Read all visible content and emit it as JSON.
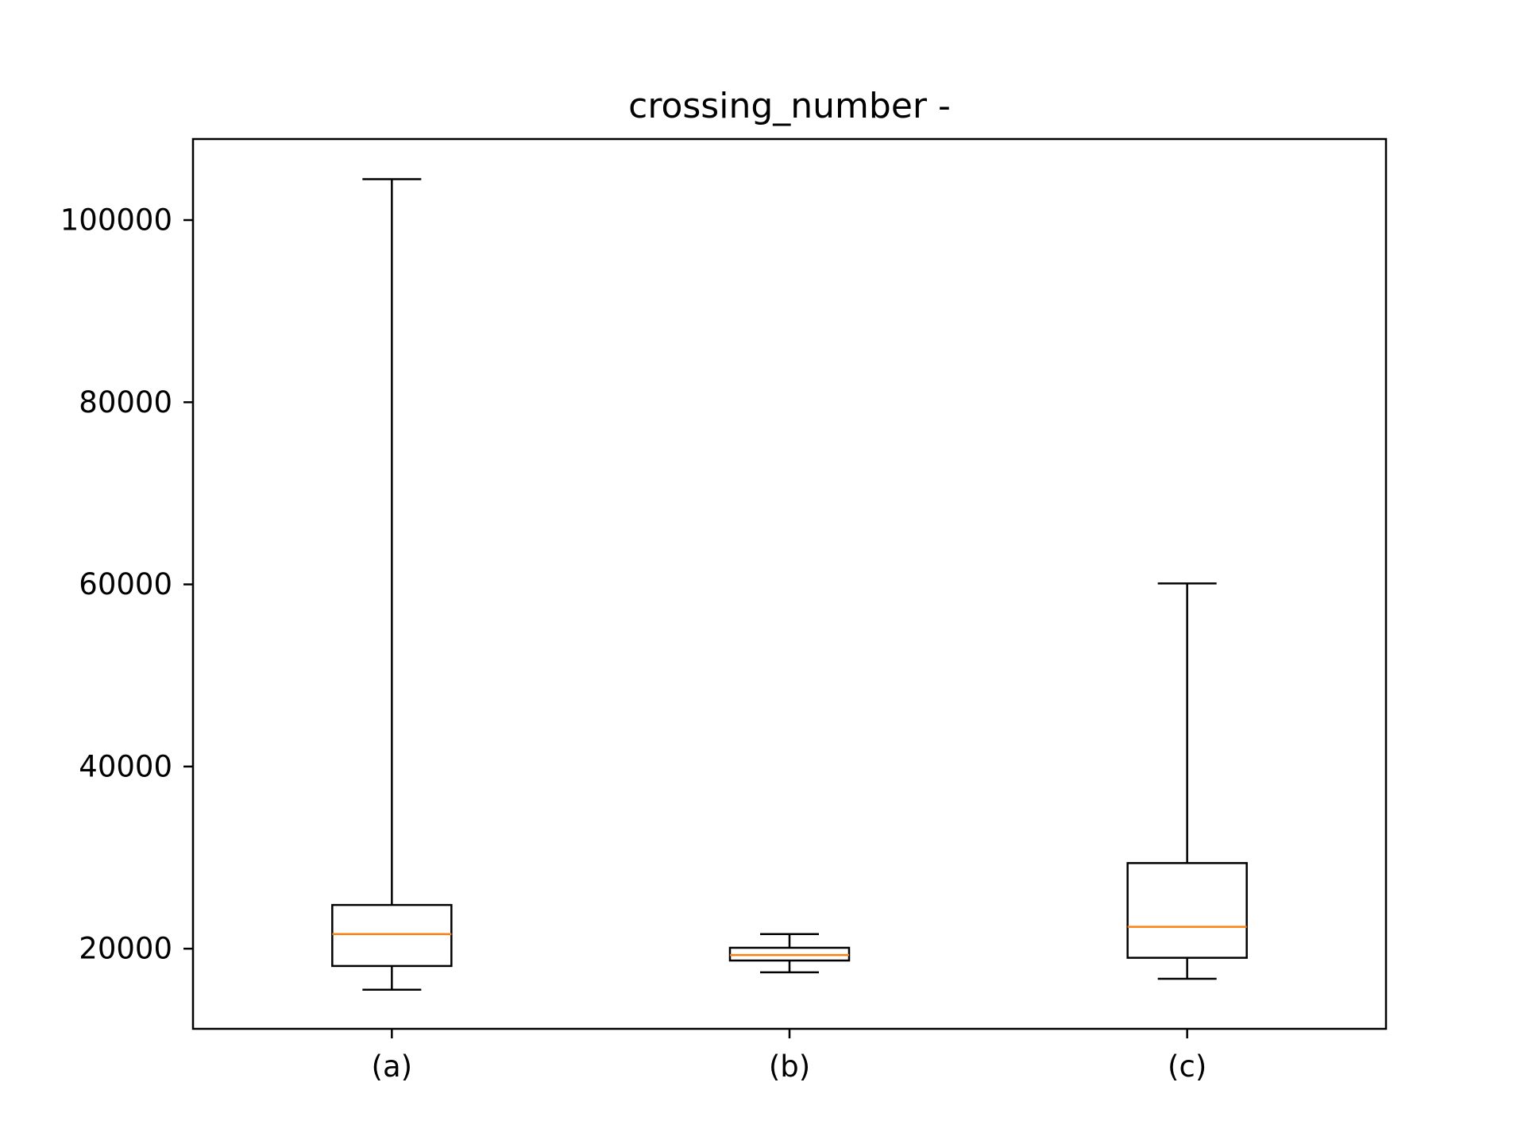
{
  "chart_data": {
    "type": "box",
    "title": "crossing_number -",
    "xlabel": "",
    "ylabel": "",
    "ylim": [
      11200,
      108900
    ],
    "yticks": [
      20000,
      40000,
      60000,
      80000,
      100000
    ],
    "ytick_labels": [
      "20000",
      "40000",
      "60000",
      "80000",
      "100000"
    ],
    "categories": [
      "(a)",
      "(b)",
      "(c)"
    ],
    "boxes": [
      {
        "label": "(a)",
        "whisker_low": 15500,
        "q1": 18100,
        "median": 21600,
        "q3": 24800,
        "whisker_high": 104500
      },
      {
        "label": "(b)",
        "whisker_low": 17400,
        "q1": 18700,
        "median": 19300,
        "q3": 20100,
        "whisker_high": 21600
      },
      {
        "label": "(c)",
        "whisker_low": 16700,
        "q1": 19000,
        "median": 22400,
        "q3": 29400,
        "whisker_high": 60100
      }
    ],
    "grid": false,
    "colors": {
      "box": "#000000",
      "median": "#ff7f0e"
    }
  }
}
